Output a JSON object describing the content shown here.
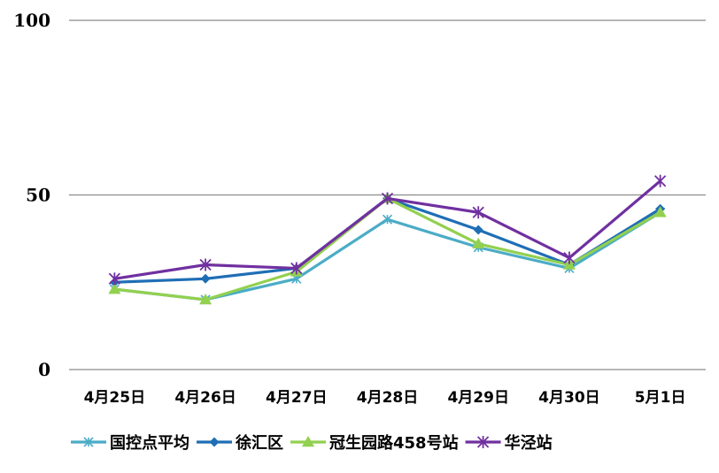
{
  "chart_data": {
    "type": "line",
    "title": "",
    "xlabel": "",
    "ylabel": "",
    "ylim": [
      0,
      100
    ],
    "yticks": [
      0,
      50,
      100
    ],
    "grid": "horizontal at 50 and 100",
    "legend": "bottom",
    "categories": [
      "4月25日",
      "4月26日",
      "4月27日",
      "4月28日",
      "4月29日",
      "4月30日",
      "5月1日"
    ],
    "series": [
      {
        "name": "国控点平均",
        "values": [
          23,
          20,
          26,
          43,
          35,
          29,
          45
        ],
        "color": "#4bacc6",
        "marker": "asterisk"
      },
      {
        "name": "徐汇区",
        "values": [
          25,
          26,
          29,
          49,
          40,
          30,
          46
        ],
        "color": "#1f6eb5",
        "marker": "diamond"
      },
      {
        "name": "冠生园路458号站",
        "values": [
          23,
          20,
          28,
          49,
          36,
          30,
          45
        ],
        "color": "#92d050",
        "marker": "triangle"
      },
      {
        "name": "华泾站",
        "values": [
          26,
          30,
          29,
          49,
          45,
          32,
          54
        ],
        "color": "#7030a0",
        "marker": "star"
      }
    ]
  }
}
